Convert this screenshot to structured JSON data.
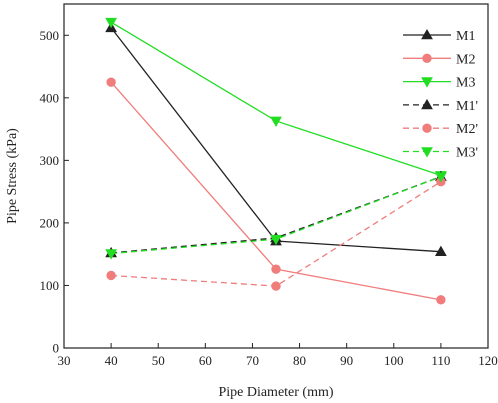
{
  "chart_data": {
    "type": "line",
    "xlabel": "Pipe Diameter (mm)",
    "ylabel": "Pipe Stress (kPa)",
    "xlim": [
      30,
      120
    ],
    "ylim": [
      0,
      550
    ],
    "xticks": [
      30,
      40,
      50,
      60,
      70,
      80,
      90,
      100,
      110,
      120
    ],
    "yticks": [
      0,
      100,
      200,
      300,
      400,
      500
    ],
    "grid": false,
    "legend_position": "top-right",
    "x": [
      40,
      75,
      110
    ],
    "series": [
      {
        "name": "M1",
        "values": [
          512,
          171,
          154
        ],
        "color": "#222222",
        "marker": "triangle-up",
        "dashed": false
      },
      {
        "name": "M2",
        "values": [
          425,
          126,
          77
        ],
        "color": "#f07c7c",
        "marker": "circle",
        "dashed": false
      },
      {
        "name": "M3",
        "values": [
          521,
          363,
          276
        ],
        "color": "#22dd22",
        "marker": "triangle-down",
        "dashed": false
      },
      {
        "name": "M1'",
        "values": [
          152,
          176,
          274
        ],
        "color": "#222222",
        "marker": "triangle-up",
        "dashed": true
      },
      {
        "name": "M2'",
        "values": [
          116,
          99,
          266
        ],
        "color": "#f07c7c",
        "marker": "circle",
        "dashed": true
      },
      {
        "name": "M3'",
        "values": [
          151,
          174,
          274
        ],
        "color": "#22dd22",
        "marker": "triangle-down",
        "dashed": true
      }
    ]
  }
}
